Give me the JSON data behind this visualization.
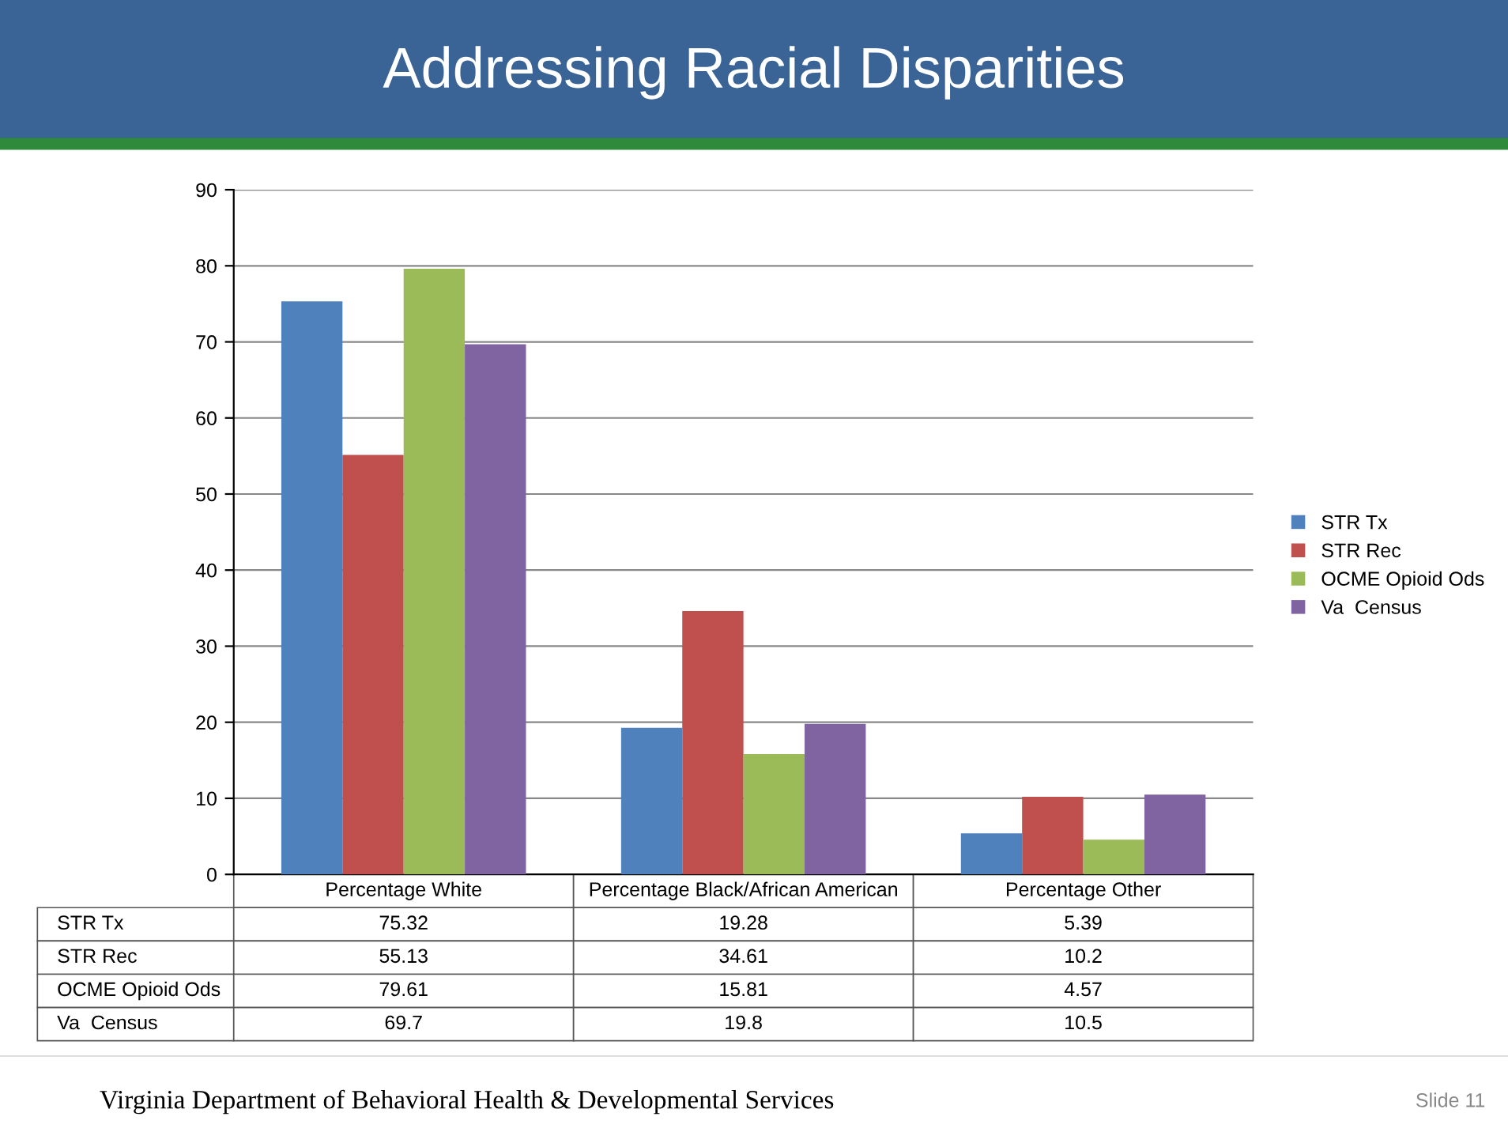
{
  "chart_data": {
    "type": "bar",
    "title": "Addressing Racial Disparities",
    "categories": [
      "Percentage White",
      "Percentage Black/African American",
      "Percentage Other"
    ],
    "series": [
      {
        "name": "STR Tx",
        "color": "#4f81bd",
        "values": [
          75.32,
          19.28,
          5.39
        ]
      },
      {
        "name": "STR Rec",
        "color": "#c0504d",
        "values": [
          55.13,
          34.61,
          10.2
        ]
      },
      {
        "name": "OCME Opioid Ods",
        "color": "#9bbb59",
        "values": [
          79.61,
          15.81,
          4.57
        ]
      },
      {
        "name": "Va  Census",
        "color": "#8064a2",
        "values": [
          69.7,
          19.8,
          10.5
        ]
      }
    ],
    "ylim": [
      0,
      90
    ],
    "yticks": [
      0,
      10,
      20,
      30,
      40,
      50,
      60,
      70,
      80,
      90
    ],
    "grid": "y",
    "legend": "right",
    "data_labels": true,
    "annotations": [
      "Virginia Department of Behavioral Health & Developmental Services",
      "Slide 11"
    ]
  }
}
